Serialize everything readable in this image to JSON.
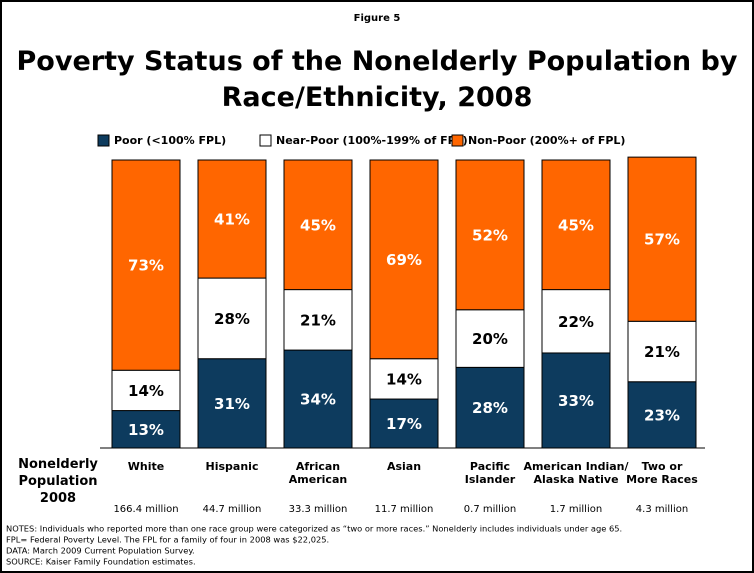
{
  "chart_data": {
    "type": "stacked_bar",
    "figure_label": "Figure 5",
    "title": "Poverty Status of the Nonelderly Population by\nRace/Ethnicity, 2008",
    "categories": [
      "White",
      "Hispanic",
      "African\nAmerican",
      "Asian",
      "Pacific\nIslander",
      "American Indian/\nAlaska Native",
      "Two or\nMore Races"
    ],
    "series": [
      {
        "name": "Poor (<100% FPL)",
        "color": "#0d3b5e",
        "label_color": "#ffffff",
        "values": [
          13,
          31,
          34,
          17,
          28,
          33,
          23
        ],
        "value_labels": [
          "13%",
          "31%",
          "34%",
          "17%",
          "28%",
          "33%",
          "23%"
        ]
      },
      {
        "name": "Near-Poor (100%-199% of FPL)",
        "color": "#ffffff",
        "label_color": "#000000",
        "values": [
          14,
          28,
          21,
          14,
          20,
          22,
          21
        ],
        "value_labels": [
          "14%",
          "28%",
          "21%",
          "14%",
          "20%",
          "22%",
          "21%"
        ]
      },
      {
        "name": "Non-Poor (200%+ of FPL)",
        "color": "#ff6600",
        "label_color": "#ffffff",
        "values": [
          73,
          41,
          45,
          69,
          52,
          45,
          57
        ],
        "value_labels": [
          "73%",
          "41%",
          "45%",
          "69%",
          "52%",
          "45%",
          "57%"
        ]
      }
    ],
    "ylim": [
      0,
      100
    ],
    "population_label": "Nonelderly\nPopulation\n2008",
    "population": [
      "166.4 million",
      "44.7 million",
      "33.3 million",
      "11.7 million",
      "0.7 million",
      "1.7 million",
      "4.3 million"
    ],
    "notes": [
      "NOTES: Individuals who reported more than one race group were categorized as “two or more races.” Nonelderly includes individuals under age 65.",
      "FPL= Federal Poverty Level. The FPL for a family of four in 2008 was $22,025.",
      "DATA: March 2009 Current Population Survey.",
      "SOURCE:  Kaiser Family Foundation estimates."
    ]
  }
}
